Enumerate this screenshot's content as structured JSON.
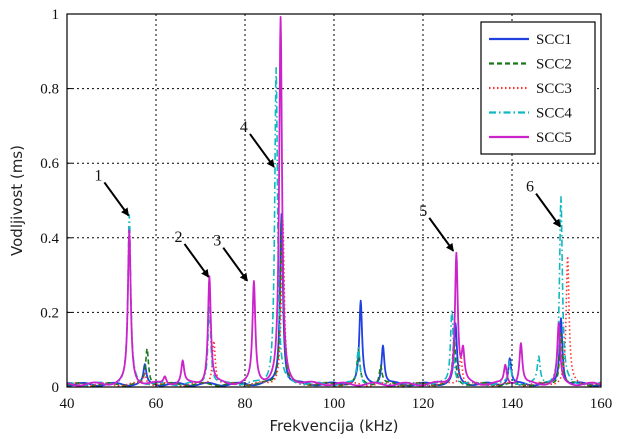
{
  "chart_data": {
    "type": "line",
    "title": "",
    "xlabel": "Frekvencija (kHz)",
    "ylabel": "Vodljivost (ms)",
    "xlim": [
      40,
      160
    ],
    "ylim": [
      0,
      1
    ],
    "grid": true,
    "legend_position": "top-right",
    "x_ticks": [
      "40",
      "60",
      "80",
      "100",
      "120",
      "140",
      "160"
    ],
    "y_ticks": [
      "0",
      "0.2",
      "0.4",
      "0.6",
      "0.8",
      "1"
    ],
    "series": [
      {
        "name": "SCC1",
        "color": "#2040e0",
        "style": "solid",
        "peaks": [
          [
            57.5,
            0.05
          ],
          [
            88.2,
            0.46
          ],
          [
            106,
            0.22
          ],
          [
            111,
            0.105
          ],
          [
            127.3,
            0.16
          ],
          [
            139.5,
            0.07
          ],
          [
            151,
            0.18
          ]
        ]
      },
      {
        "name": "SCC2",
        "color": "#1a7a1a",
        "style": "dashed",
        "peaks": [
          [
            58,
            0.095
          ],
          [
            88.3,
            0.45
          ],
          [
            105.5,
            0.09
          ],
          [
            110.5,
            0.05
          ],
          [
            127,
            0.12
          ],
          [
            151,
            0.14
          ]
        ]
      },
      {
        "name": "SCC3",
        "color": "#ff3030",
        "style": "dotted",
        "peaks": [
          [
            57.5,
            0.03
          ],
          [
            73,
            0.12
          ],
          [
            88.5,
            0.44
          ],
          [
            128.5,
            0.08
          ],
          [
            152.5,
            0.34
          ]
        ]
      },
      {
        "name": "SCC4",
        "color": "#10b8c0",
        "style": "dashdot",
        "peaks": [
          [
            54,
            0.45
          ],
          [
            72,
            0.21
          ],
          [
            87,
            0.85
          ],
          [
            105.5,
            0.1
          ],
          [
            126.5,
            0.2
          ],
          [
            139.5,
            0.06
          ],
          [
            146,
            0.07
          ],
          [
            151,
            0.5
          ]
        ]
      },
      {
        "name": "SCC5",
        "color": "#cc22cc",
        "style": "solid",
        "peaks": [
          [
            54,
            0.41
          ],
          [
            62,
            0.02
          ],
          [
            66,
            0.06
          ],
          [
            72,
            0.29
          ],
          [
            82,
            0.27
          ],
          [
            88,
            0.98
          ],
          [
            127.5,
            0.35
          ],
          [
            129,
            0.08
          ],
          [
            138.5,
            0.05
          ],
          [
            142,
            0.11
          ],
          [
            150.5,
            0.16
          ]
        ]
      }
    ],
    "annotations": [
      {
        "label": "1",
        "arrow_tip": [
          53.8,
          0.46
        ]
      },
      {
        "label": "2",
        "arrow_tip": [
          71.8,
          0.295
        ]
      },
      {
        "label": "3",
        "arrow_tip": [
          80.5,
          0.285
        ]
      },
      {
        "label": "4",
        "arrow_tip": [
          86.5,
          0.59
        ]
      },
      {
        "label": "5",
        "arrow_tip": [
          126.8,
          0.365
        ]
      },
      {
        "label": "6",
        "arrow_tip": [
          150.8,
          0.43
        ]
      }
    ]
  }
}
